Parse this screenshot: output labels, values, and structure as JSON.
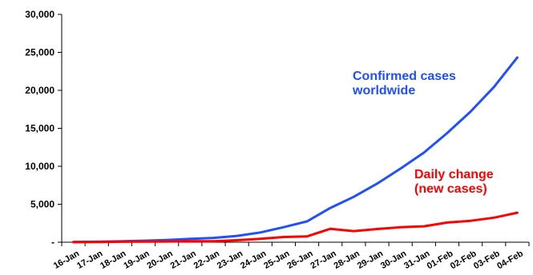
{
  "chart_data": {
    "type": "line",
    "categories": [
      "16-Jan",
      "17-Jan",
      "18-Jan",
      "19-Jan",
      "20-Jan",
      "21-Jan",
      "22-Jan",
      "23-Jan",
      "24-Jan",
      "25-Jan",
      "26-Jan",
      "27-Jan",
      "28-Jan",
      "29-Jan",
      "30-Jan",
      "31-Jan",
      "01-Feb",
      "02-Feb",
      "03-Feb",
      "04-Feb"
    ],
    "ylim": [
      0,
      30000
    ],
    "yticks": [
      0,
      5000,
      10000,
      15000,
      20000,
      25000,
      30000
    ],
    "ytick_labels": [
      "-",
      "5,000",
      "10,000",
      "15,000",
      "20,000",
      "25,000",
      "30,000"
    ],
    "grid": false,
    "series": [
      {
        "name_lines": [
          "Confirmed cases",
          "worldwide"
        ],
        "color": "#1f4fff",
        "values": [
          45,
          62,
          121,
          198,
          291,
          440,
          571,
          830,
          1287,
          1975,
          2744,
          4515,
          5974,
          7711,
          9692,
          11791,
          14380,
          17205,
          20438,
          24324
        ]
      },
      {
        "name_lines": [
          "Daily change",
          "(new cases)"
        ],
        "color": "#ff0000",
        "values": [
          0,
          17,
          59,
          77,
          93,
          149,
          131,
          259,
          457,
          688,
          769,
          1771,
          1459,
          1737,
          1981,
          2099,
          2589,
          2825,
          3233,
          3886
        ]
      }
    ]
  }
}
